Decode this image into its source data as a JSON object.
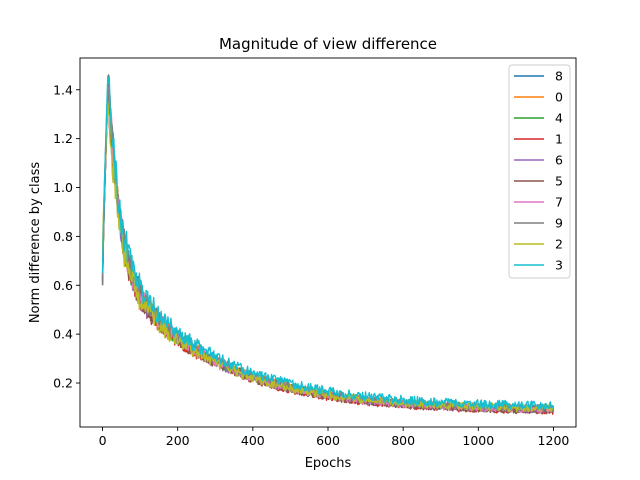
{
  "chart_data": {
    "type": "line",
    "title": "Magnitude of view difference",
    "xlabel": "Epochs",
    "ylabel": "Norm difference by class",
    "xlim": [
      -60,
      1260
    ],
    "ylim": [
      0.02,
      1.53
    ],
    "xticks": [
      0,
      200,
      400,
      600,
      800,
      1000,
      1200
    ],
    "yticks": [
      0.2,
      0.4,
      0.6,
      0.8,
      1.0,
      1.2,
      1.4
    ],
    "ytick_labels": [
      "0.2",
      "0.4",
      "0.6",
      "0.8",
      "1.0",
      "1.2",
      "1.4"
    ],
    "legend_position": "top-right",
    "grid": false,
    "x_range": [
      0,
      1200
    ],
    "peak_epoch": 15,
    "series": [
      {
        "name": "8",
        "color": "#1f77b4",
        "start": 0.62,
        "peak": 1.47,
        "end": 0.085,
        "noise": 0.015
      },
      {
        "name": "0",
        "color": "#ff7f0e",
        "start": 0.7,
        "peak": 1.45,
        "end": 0.09,
        "noise": 0.014
      },
      {
        "name": "4",
        "color": "#2ca02c",
        "start": 0.6,
        "peak": 1.43,
        "end": 0.085,
        "noise": 0.015
      },
      {
        "name": "1",
        "color": "#d62728",
        "start": 0.63,
        "peak": 1.4,
        "end": 0.08,
        "noise": 0.014
      },
      {
        "name": "6",
        "color": "#9467bd",
        "start": 0.62,
        "peak": 1.41,
        "end": 0.085,
        "noise": 0.015
      },
      {
        "name": "5",
        "color": "#8c564b",
        "start": 0.61,
        "peak": 1.42,
        "end": 0.08,
        "noise": 0.014
      },
      {
        "name": "7",
        "color": "#e377c2",
        "start": 0.64,
        "peak": 1.44,
        "end": 0.085,
        "noise": 0.015
      },
      {
        "name": "9",
        "color": "#7f7f7f",
        "start": 0.6,
        "peak": 1.46,
        "end": 0.09,
        "noise": 0.015
      },
      {
        "name": "2",
        "color": "#bcbd22",
        "start": 0.74,
        "peak": 1.38,
        "end": 0.09,
        "noise": 0.016
      },
      {
        "name": "3",
        "color": "#17becf",
        "start": 0.65,
        "peak": 1.5,
        "end": 0.1,
        "noise": 0.018
      }
    ]
  }
}
